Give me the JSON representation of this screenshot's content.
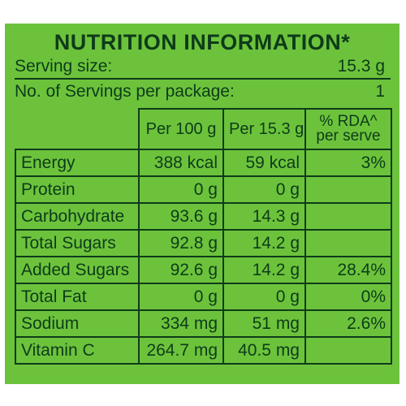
{
  "label": {
    "title": "NUTRITION INFORMATION*",
    "serving_size_label": "Serving size:",
    "serving_size_value": "15.3 g",
    "servings_label": "No. of Servings per package:",
    "servings_value": "1"
  },
  "table": {
    "headers": {
      "per_100g": "Per 100 g",
      "per_serving": "Per 15.3 g",
      "rda_line1": "% RDA^",
      "rda_line2": "per serve"
    },
    "rows": [
      {
        "name": "Energy",
        "per_100g": "388 kcal",
        "per_serving": "59 kcal",
        "rda": "3%"
      },
      {
        "name": "Protein",
        "per_100g": "0 g",
        "per_serving": "0 g",
        "rda": ""
      },
      {
        "name": "Carbohydrate",
        "per_100g": "93.6 g",
        "per_serving": "14.3 g",
        "rda": ""
      },
      {
        "name": "Total Sugars",
        "per_100g": "92.8 g",
        "per_serving": "14.2 g",
        "rda": ""
      },
      {
        "name": "Added Sugars",
        "per_100g": "92.6 g",
        "per_serving": "14.2 g",
        "rda": "28.4%"
      },
      {
        "name": "Total Fat",
        "per_100g": "0 g",
        "per_serving": "0 g",
        "rda": "0%"
      },
      {
        "name": "Sodium",
        "per_100g": "334 mg",
        "per_serving": "51 mg",
        "rda": "2.6%"
      },
      {
        "name": "Vitamin C",
        "per_100g": "264.7 mg",
        "per_serving": "40.5 mg",
        "rda": ""
      }
    ]
  },
  "colors": {
    "panel_green": "#6cc33b",
    "text_dark_green": "#0e3b1a"
  }
}
